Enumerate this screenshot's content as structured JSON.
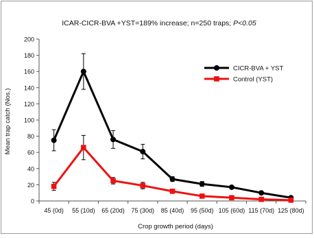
{
  "chart_data": {
    "type": "line",
    "title_prefix": "ICAR-CICR-BVA +YST=189% increase; n=250 traps; ",
    "title_italic": "P<0.05",
    "xlabel": "Crop growth period (days)",
    "ylabel": "Mean trap catch (Nos.)",
    "ylim": [
      0,
      200
    ],
    "y_ticks": [
      0,
      20,
      40,
      60,
      80,
      100,
      120,
      140,
      160,
      180,
      200
    ],
    "categories": [
      "45 (0d)",
      "55 (10d)",
      "65 (20d)",
      "75 (30d)",
      "85 (40d)",
      "95 (50d)",
      "105 (60d)",
      "115 (70d)",
      "125 (80d)"
    ],
    "grid": false,
    "legend_position": "top-right",
    "series": [
      {
        "name": "CICR-BVA + YST",
        "color": "#000000",
        "marker": "circle",
        "values": [
          75,
          160,
          76,
          61,
          27,
          21,
          17,
          10,
          4
        ],
        "errors": [
          13,
          22,
          11,
          9,
          3,
          3,
          2,
          1,
          1
        ]
      },
      {
        "name": "Control (YST)",
        "color": "#ee1111",
        "marker": "square",
        "values": [
          18,
          66,
          25,
          19,
          12,
          6,
          4,
          2,
          1
        ],
        "errors": [
          5,
          15,
          4,
          4,
          2,
          1,
          1,
          1,
          1
        ]
      }
    ]
  }
}
